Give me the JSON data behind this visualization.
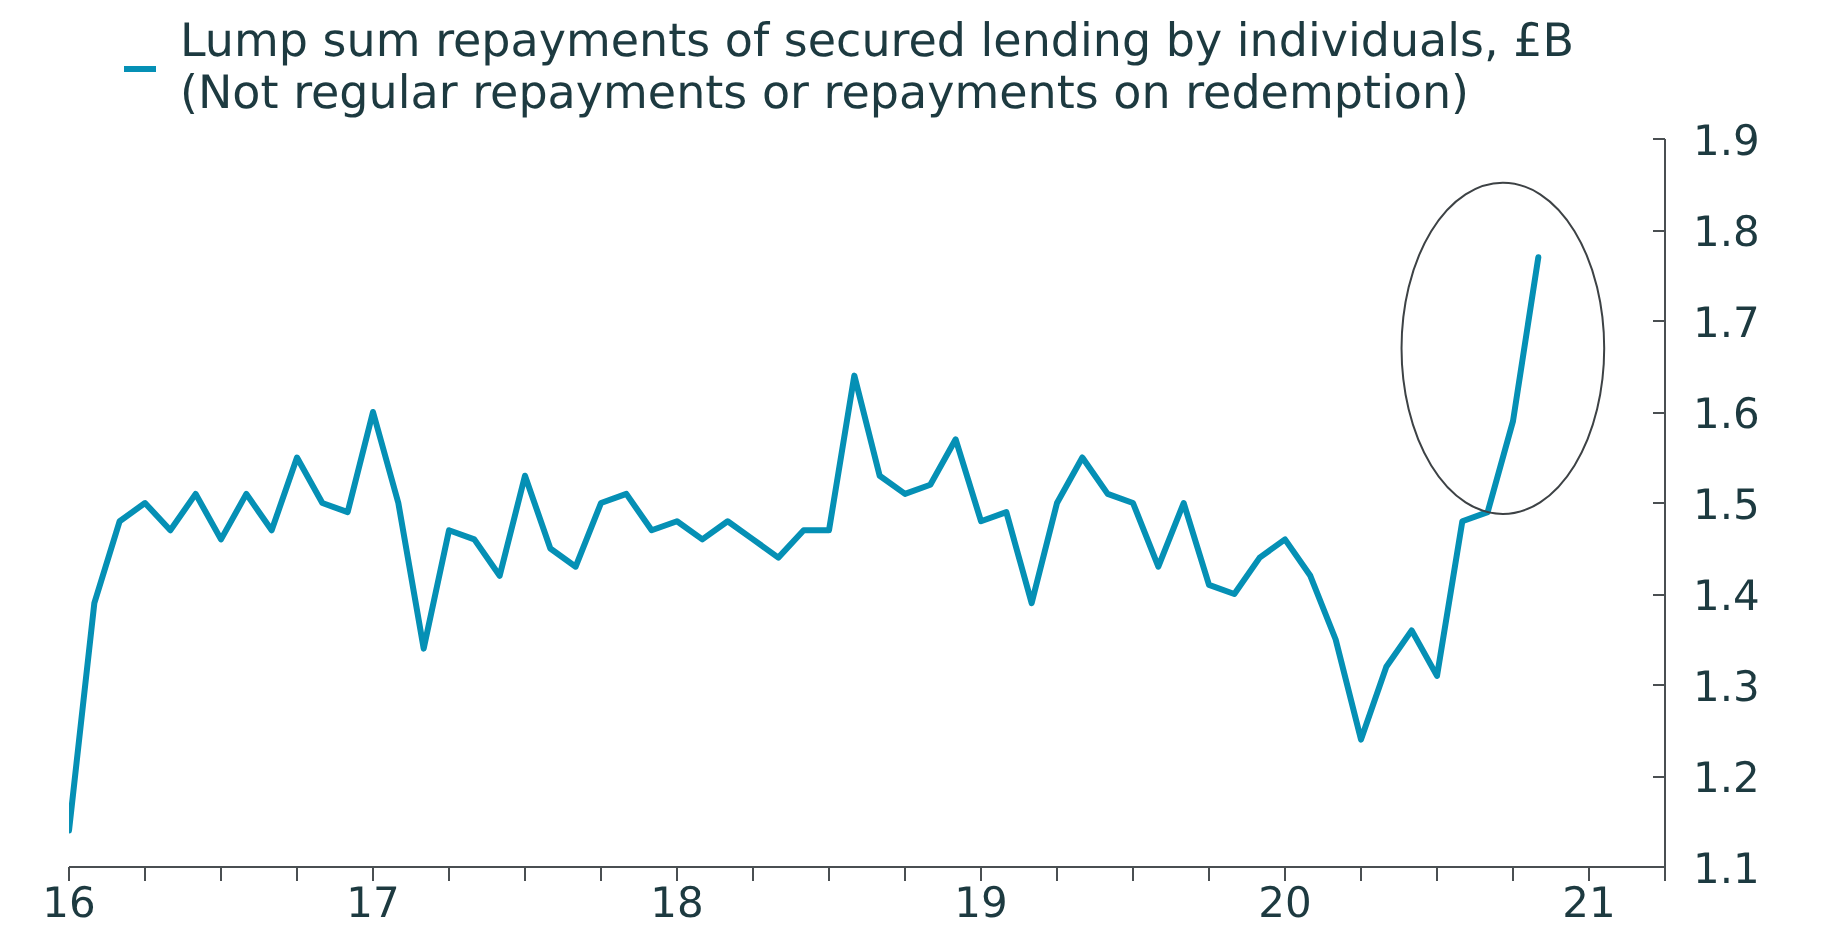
{
  "chart_data": {
    "type": "line",
    "x": [
      "2016-01",
      "2016-02",
      "2016-03",
      "2016-04",
      "2016-05",
      "2016-06",
      "2016-07",
      "2016-08",
      "2016-09",
      "2016-10",
      "2016-11",
      "2016-12",
      "2017-01",
      "2017-02",
      "2017-03",
      "2017-04",
      "2017-05",
      "2017-06",
      "2017-07",
      "2017-08",
      "2017-09",
      "2017-10",
      "2017-11",
      "2017-12",
      "2018-01",
      "2018-02",
      "2018-03",
      "2018-04",
      "2018-05",
      "2018-06",
      "2018-07",
      "2018-08",
      "2018-09",
      "2018-10",
      "2018-11",
      "2018-12",
      "2019-01",
      "2019-02",
      "2019-03",
      "2019-04",
      "2019-05",
      "2019-06",
      "2019-07",
      "2019-08",
      "2019-09",
      "2019-10",
      "2019-11",
      "2019-12",
      "2020-01",
      "2020-02",
      "2020-03",
      "2020-04",
      "2020-05",
      "2020-06",
      "2020-07",
      "2020-08",
      "2020-09",
      "2020-10",
      "2020-11"
    ],
    "series": [
      {
        "name": "Lump sum repayments of secured lending by individuals, £B (Not regular repayments or repayments on redemption)",
        "color": "#0590b5",
        "values": [
          1.14,
          1.39,
          1.48,
          1.5,
          1.47,
          1.51,
          1.46,
          1.51,
          1.47,
          1.55,
          1.5,
          1.49,
          1.6,
          1.5,
          1.34,
          1.47,
          1.46,
          1.42,
          1.53,
          1.45,
          1.43,
          1.5,
          1.51,
          1.47,
          1.48,
          1.46,
          1.48,
          1.46,
          1.44,
          1.47,
          1.47,
          1.64,
          1.53,
          1.51,
          1.52,
          1.57,
          1.48,
          1.49,
          1.39,
          1.5,
          1.55,
          1.51,
          1.5,
          1.43,
          1.5,
          1.41,
          1.4,
          1.44,
          1.46,
          1.42,
          1.35,
          1.24,
          1.32,
          1.36,
          1.31,
          1.48,
          1.49,
          1.59,
          1.77
        ]
      }
    ],
    "xlim": [
      "2016-01",
      "2021-04"
    ],
    "xticks": [
      {
        "value": "2016-01",
        "label": "16"
      },
      {
        "value": "2016-04",
        "label": null
      },
      {
        "value": "2016-07",
        "label": null
      },
      {
        "value": "2016-10",
        "label": null
      },
      {
        "value": "2017-01",
        "label": "17"
      },
      {
        "value": "2017-04",
        "label": null
      },
      {
        "value": "2017-07",
        "label": null
      },
      {
        "value": "2017-10",
        "label": null
      },
      {
        "value": "2018-01",
        "label": "18"
      },
      {
        "value": "2018-04",
        "label": null
      },
      {
        "value": "2018-07",
        "label": null
      },
      {
        "value": "2018-10",
        "label": null
      },
      {
        "value": "2019-01",
        "label": "19"
      },
      {
        "value": "2019-04",
        "label": null
      },
      {
        "value": "2019-07",
        "label": null
      },
      {
        "value": "2019-10",
        "label": null
      },
      {
        "value": "2020-01",
        "label": "20"
      },
      {
        "value": "2020-04",
        "label": null
      },
      {
        "value": "2020-07",
        "label": null
      },
      {
        "value": "2020-10",
        "label": null
      },
      {
        "value": "2021-01",
        "label": "21"
      },
      {
        "value": "2021-04",
        "label": null
      }
    ],
    "ylim": [
      1.1,
      1.9
    ],
    "yticks": [
      1.1,
      1.2,
      1.3,
      1.4,
      1.5,
      1.6,
      1.7,
      1.8,
      1.9
    ],
    "grid": false,
    "legend": "top left"
  }
}
